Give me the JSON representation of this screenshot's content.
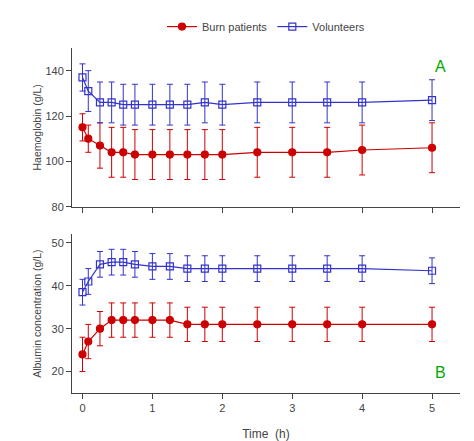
{
  "chart_data": [
    {
      "type": "line",
      "y_label": "Haemoglobin (g/L)",
      "annotations": [
        {
          "text": "A",
          "color": "#00AA00",
          "position": "top right"
        }
      ],
      "x": [
        0,
        0.083,
        0.25,
        0.417,
        0.583,
        0.75,
        1.0,
        1.25,
        1.5,
        1.75,
        2.0,
        2.5,
        3.0,
        3.5,
        4.0,
        5.0
      ],
      "series": [
        {
          "name": "Burn patients",
          "color": "#CC0000",
          "marker": "circle",
          "line_style": "solid",
          "values": [
            115,
            110,
            107,
            104,
            104,
            103,
            103,
            103,
            103,
            103,
            103,
            104,
            104,
            104,
            105,
            106
          ],
          "errors": [
            6,
            6,
            10,
            11,
            11,
            11,
            11,
            11,
            11,
            11,
            11,
            11,
            11,
            11,
            11,
            11
          ]
        },
        {
          "name": "Volunteers",
          "color": "#3333CC",
          "marker": "square-open",
          "line_style": "solid",
          "values": [
            137,
            131,
            126,
            126,
            125,
            125,
            125,
            125,
            125,
            126,
            125,
            126,
            126,
            126,
            126,
            127
          ],
          "errors": [
            6,
            9,
            9,
            9,
            9,
            9,
            9,
            9,
            9,
            9,
            9,
            9,
            9,
            9,
            9,
            9
          ]
        }
      ],
      "xlim": [
        -0.15,
        5.4
      ],
      "xticks": [
        0,
        1,
        2,
        3,
        4,
        5
      ],
      "ylim": [
        80,
        150
      ],
      "yticks": [
        80,
        100,
        120,
        140
      ],
      "tick_labels": "y",
      "grid": false,
      "legend": "top"
    },
    {
      "type": "line",
      "x_label": "Time  (h)",
      "y_label": "Albumin concentration (g/L)",
      "annotations": [
        {
          "text": "B",
          "color": "#00AA00",
          "position": "bottom right"
        }
      ],
      "x": [
        0,
        0.083,
        0.25,
        0.417,
        0.583,
        0.75,
        1.0,
        1.25,
        1.5,
        1.75,
        2.0,
        2.5,
        3.0,
        3.5,
        4.0,
        5.0
      ],
      "series": [
        {
          "name": "Burn patients",
          "color": "#CC0000",
          "marker": "circle",
          "line_style": "solid",
          "values": [
            24,
            27,
            30,
            32,
            32,
            32,
            32,
            32,
            31,
            31,
            31,
            31,
            31,
            31,
            31,
            31
          ],
          "errors": [
            4,
            4,
            4,
            4,
            4,
            4,
            4,
            4,
            4,
            4,
            4,
            4,
            4,
            4,
            4,
            4
          ]
        },
        {
          "name": "Volunteers",
          "color": "#3333CC",
          "marker": "square-open",
          "line_style": "solid",
          "values": [
            38.5,
            41,
            45,
            45.5,
            45.5,
            45,
            44.5,
            44.5,
            44,
            44,
            44,
            44,
            44,
            44,
            44,
            43.5
          ],
          "errors": [
            3,
            3,
            3,
            3,
            3,
            3,
            3,
            3,
            3,
            3,
            3,
            3,
            3,
            3,
            3,
            3
          ]
        }
      ],
      "xlim": [
        -0.15,
        5.4
      ],
      "xticks": [
        0,
        1,
        2,
        3,
        4,
        5
      ],
      "ylim": [
        15,
        52
      ],
      "yticks": [
        20,
        30,
        40,
        50
      ],
      "grid": false
    }
  ]
}
